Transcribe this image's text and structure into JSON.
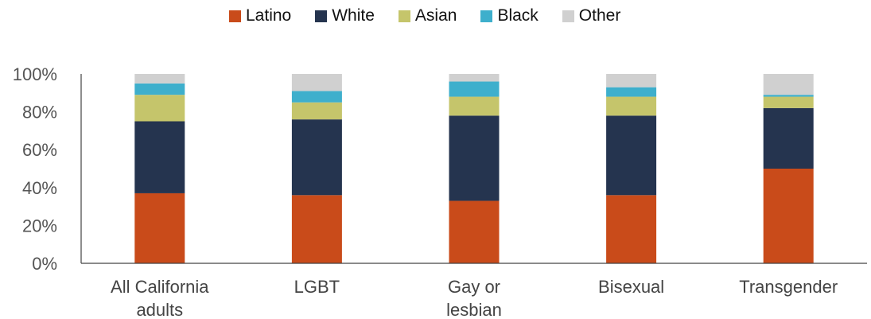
{
  "chart_data": {
    "type": "bar",
    "stacked": true,
    "categories": [
      "All California adults",
      "LGBT",
      "Gay or lesbian",
      "Bisexual",
      "Transgender"
    ],
    "category_lines": [
      [
        "All California",
        "adults"
      ],
      [
        "LGBT"
      ],
      [
        "Gay or",
        "lesbian"
      ],
      [
        "Bisexual"
      ],
      [
        "Transgender"
      ]
    ],
    "series": [
      {
        "name": "Latino",
        "color": "#C94B1A",
        "values": [
          37,
          36,
          33,
          36,
          50
        ]
      },
      {
        "name": "White",
        "color": "#25344F",
        "values": [
          38,
          40,
          45,
          42,
          32
        ]
      },
      {
        "name": "Asian",
        "color": "#C5C56B",
        "values": [
          14,
          9,
          10,
          10,
          6
        ]
      },
      {
        "name": "Black",
        "color": "#3EAFCC",
        "values": [
          6,
          6,
          8,
          5,
          1
        ]
      },
      {
        "name": "Other",
        "color": "#D0D0D0",
        "values": [
          5,
          9,
          4,
          7,
          11
        ]
      }
    ],
    "ylim": [
      0,
      100
    ],
    "yticks": [
      "0%",
      "20%",
      "40%",
      "60%",
      "80%",
      "100%"
    ],
    "legend_position": "top",
    "grid": false
  }
}
